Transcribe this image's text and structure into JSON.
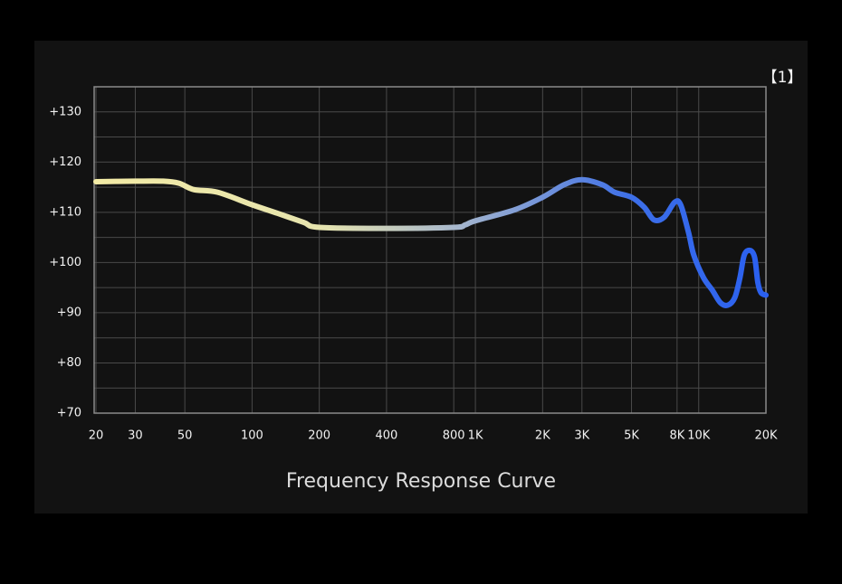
{
  "chart_data": {
    "type": "line",
    "title": "Frequency Response Curve",
    "annotation": "【1】",
    "log_x": true,
    "grid": true,
    "xlim": [
      20,
      20000
    ],
    "ylim": [
      70,
      135
    ],
    "xticks": [
      20,
      30,
      50,
      100,
      200,
      400,
      800,
      {
        "value": 1000,
        "label": "1K"
      },
      {
        "value": 2000,
        "label": "2K"
      },
      {
        "value": 3000,
        "label": "3K"
      },
      {
        "value": 5000,
        "label": "5K"
      },
      {
        "value": 8000,
        "label": "8K"
      },
      {
        "value": 10000,
        "label": "10K"
      },
      {
        "value": 20000,
        "label": "20K"
      }
    ],
    "yticks": [
      {
        "value": 70,
        "label": "+70"
      },
      {
        "value": 80,
        "label": "+80"
      },
      {
        "value": 90,
        "label": "+90"
      },
      {
        "value": 100,
        "label": "+100"
      },
      {
        "value": 110,
        "label": "+110"
      },
      {
        "value": 120,
        "label": "+120"
      },
      {
        "value": 130,
        "label": "+130"
      }
    ],
    "y_minor_grid": [
      75,
      85,
      95,
      105,
      115,
      125
    ],
    "color_stops": [
      {
        "x": 20,
        "color": "#f3eba6"
      },
      {
        "x": 200,
        "color": "#e6e4ae"
      },
      {
        "x": 800,
        "color": "#a8b8cc"
      },
      {
        "x": 5000,
        "color": "#3d6fe8"
      },
      {
        "x": 20000,
        "color": "#2a60f0"
      }
    ],
    "series": [
      {
        "x": [
          20,
          30,
          40,
          47,
          55,
          70,
          100,
          130,
          170,
          200,
          400,
          800,
          900,
          1000,
          1500,
          2000,
          2500,
          3000,
          3700,
          4200,
          5000,
          5700,
          6300,
          7000,
          7800,
          8300,
          9000,
          9500,
          10500,
          11500,
          12500,
          13500,
          14500,
          15300,
          16000,
          17000,
          17800,
          18400,
          19000,
          20000
        ],
        "values": [
          116.1,
          116.2,
          116.2,
          115.8,
          114.5,
          114,
          111.5,
          109.8,
          108,
          107,
          106.8,
          107,
          107.5,
          108.3,
          110.5,
          113,
          115.5,
          116.5,
          115.5,
          114,
          113,
          111,
          108.5,
          109,
          112,
          111.5,
          106,
          101.5,
          97,
          94.5,
          92,
          91.5,
          93,
          97,
          101.5,
          102.4,
          101,
          96,
          94,
          93.5
        ]
      }
    ]
  }
}
